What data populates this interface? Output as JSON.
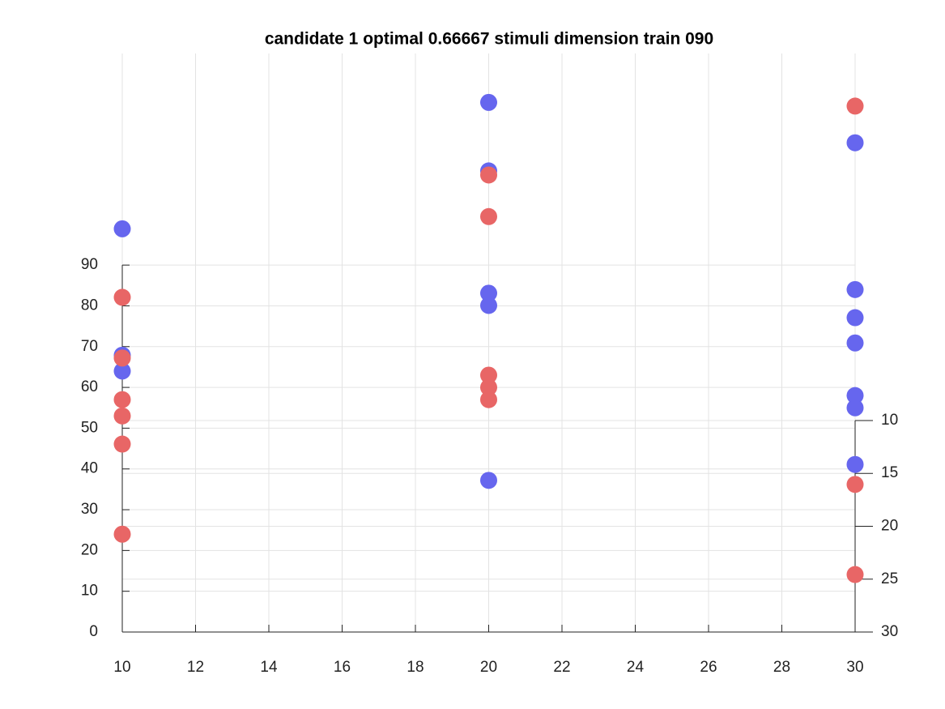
{
  "chart_data": {
    "type": "scatter",
    "title": "candidate 1 optimal 0.66667 stimuli dimension train 090",
    "xlim": [
      10,
      30
    ],
    "xticks": [
      10,
      12,
      14,
      16,
      18,
      20,
      22,
      24,
      26,
      28,
      30
    ],
    "ylim": [
      0,
      141.9
    ],
    "yticks": [
      0,
      10,
      20,
      30,
      40,
      50,
      60,
      70,
      80,
      90
    ],
    "y2lim": [
      30,
      -24.7
    ],
    "y2ticks": [
      10,
      15,
      20,
      25,
      30
    ],
    "grid": true,
    "series": [
      {
        "color": "#6666ee",
        "x": [
          10,
          10,
          10,
          20,
          20,
          20,
          20,
          20,
          30,
          30,
          30,
          30,
          30,
          30,
          30
        ],
        "values": [
          98.9,
          67.9,
          64.0,
          129.9,
          113.1,
          83.1,
          80.1,
          37.2,
          120.0,
          84.0,
          77.1,
          70.9,
          58.0,
          55.0,
          41.1
        ]
      },
      {
        "color": "#e86666",
        "x": [
          10,
          10,
          10,
          10,
          10,
          10,
          20,
          20,
          20,
          20,
          20,
          30,
          30,
          30
        ],
        "values": [
          82.1,
          67.2,
          57.0,
          53.0,
          46.1,
          24.0,
          112.1,
          101.9,
          63.0,
          60.0,
          57.0,
          129.0,
          36.2,
          14.1
        ]
      }
    ]
  }
}
